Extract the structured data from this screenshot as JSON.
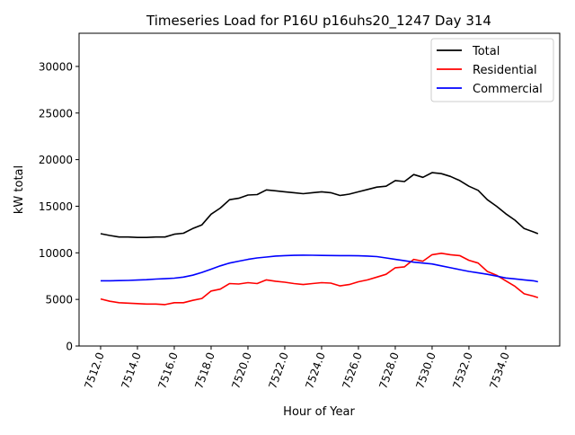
{
  "chart_data": {
    "type": "line",
    "title": "Timeseries Load for P16U p16uhs20_1247  Day 314",
    "xlabel": "Hour of Year",
    "ylabel": "kW total",
    "xlim": [
      7510.83,
      7536.93
    ],
    "ylim": [
      0,
      33560
    ],
    "grid": false,
    "legend_position": "top-right",
    "xticks": [
      7512,
      7514,
      7516,
      7518,
      7520,
      7522,
      7524,
      7526,
      7528,
      7530,
      7532,
      7534
    ],
    "xtick_labels": [
      "7512.0",
      "7514.0",
      "7516.0",
      "7518.0",
      "7520.0",
      "7522.0",
      "7524.0",
      "7526.0",
      "7528.0",
      "7530.0",
      "7532.0",
      "7534.0"
    ],
    "yticks": [
      0,
      5000,
      10000,
      15000,
      20000,
      25000,
      30000
    ],
    "ytick_labels": [
      "0",
      "5000",
      "10000",
      "15000",
      "20000",
      "25000",
      "30000"
    ],
    "x": [
      7512,
      7512.5,
      7513,
      7513.5,
      7514,
      7514.5,
      7515,
      7515.5,
      7516,
      7516.5,
      7517,
      7517.5,
      7518,
      7518.5,
      7519,
      7519.5,
      7520,
      7520.5,
      7521,
      7521.5,
      7522,
      7522.5,
      7523,
      7523.5,
      7524,
      7524.5,
      7525,
      7525.5,
      7526,
      7526.5,
      7527,
      7527.5,
      7528,
      7528.5,
      7529,
      7529.5,
      7530,
      7530.5,
      7531,
      7531.5,
      7532,
      7532.5,
      7533,
      7533.5,
      7534,
      7534.5,
      7535,
      7535.5,
      7535.75
    ],
    "series": [
      {
        "name": "Total",
        "color": "#000000",
        "values": [
          12050,
          11860,
          11700,
          11700,
          11650,
          11650,
          11700,
          11700,
          12000,
          12100,
          12600,
          13000,
          14150,
          14800,
          15700,
          15850,
          16200,
          16250,
          16750,
          16650,
          16550,
          16450,
          16350,
          16450,
          16550,
          16450,
          16150,
          16300,
          16550,
          16800,
          17050,
          17150,
          17750,
          17650,
          18400,
          18100,
          18600,
          18500,
          18200,
          17750,
          17150,
          16700,
          15700,
          15000,
          14200,
          13500,
          12600,
          12250,
          12050
        ]
      },
      {
        "name": "Residential",
        "color": "#ff0000",
        "values": [
          5050,
          4800,
          4650,
          4600,
          4550,
          4500,
          4500,
          4450,
          4650,
          4650,
          4900,
          5100,
          5900,
          6100,
          6700,
          6650,
          6800,
          6700,
          7100,
          6950,
          6850,
          6700,
          6600,
          6700,
          6800,
          6750,
          6450,
          6600,
          6900,
          7100,
          7400,
          7700,
          8400,
          8500,
          9300,
          9100,
          9800,
          9950,
          9800,
          9700,
          9200,
          8900,
          8000,
          7600,
          7000,
          6400,
          5600,
          5350,
          5200
        ]
      },
      {
        "name": "Commercial",
        "color": "#0000ff",
        "values": [
          7000,
          7000,
          7020,
          7040,
          7080,
          7120,
          7180,
          7220,
          7280,
          7400,
          7600,
          7900,
          8250,
          8600,
          8900,
          9100,
          9300,
          9450,
          9550,
          9650,
          9700,
          9730,
          9750,
          9740,
          9720,
          9710,
          9700,
          9700,
          9680,
          9650,
          9600,
          9450,
          9300,
          9150,
          9000,
          8900,
          8800,
          8600,
          8400,
          8200,
          8000,
          7850,
          7700,
          7500,
          7300,
          7200,
          7100,
          7000,
          6900
        ]
      }
    ]
  }
}
